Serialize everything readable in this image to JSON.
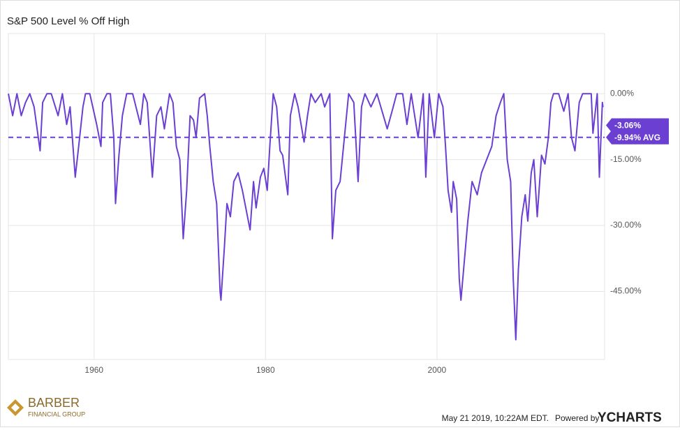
{
  "chart_data": {
    "type": "line",
    "title": "S&P 500 Level % Off High",
    "xlim": [
      1950,
      2019.56
    ],
    "ylim": [
      -60.5,
      13.7
    ],
    "xticks": [
      1960,
      1980,
      2000
    ],
    "yticks": [
      {
        "value": 0,
        "label": "0.00%"
      },
      {
        "value": -15,
        "label": "-15.00%"
      },
      {
        "value": -30,
        "label": "-30.00%"
      },
      {
        "value": -45,
        "label": "-45.00%"
      }
    ],
    "grid": true,
    "series": [
      {
        "color": "#6a3fd2",
        "end_label": "-3.06%",
        "x": [
          1950,
          1950.5,
          1951,
          1951.5,
          1952,
          1952.5,
          1953,
          1953.7,
          1954,
          1954.5,
          1955,
          1955.8,
          1956.3,
          1956.8,
          1957.2,
          1957.8,
          1958.2,
          1958.7,
          1959,
          1959.5,
          1960.3,
          1960.8,
          1961,
          1961.5,
          1961.9,
          1962.3,
          1962.5,
          1962.9,
          1963.3,
          1963.8,
          1964.5,
          1965.4,
          1965.8,
          1966.2,
          1966.8,
          1967.3,
          1967.8,
          1968.2,
          1968.8,
          1969.2,
          1969.6,
          1970,
          1970.4,
          1970.8,
          1971.2,
          1971.6,
          1971.9,
          1972.3,
          1972.9,
          1973.2,
          1973.5,
          1973.9,
          1974.3,
          1974.7,
          1974.8,
          1975.2,
          1975.5,
          1975.9,
          1976.3,
          1976.8,
          1977.3,
          1977.8,
          1978.2,
          1978.6,
          1978.9,
          1979.4,
          1979.8,
          1980.2,
          1980.5,
          1980.9,
          1981.3,
          1981.7,
          1982,
          1982.6,
          1982.9,
          1983.4,
          1983.8,
          1984.5,
          1984.9,
          1985.3,
          1985.8,
          1986.5,
          1986.9,
          1987.5,
          1987.8,
          1988.2,
          1988.7,
          1989.2,
          1989.7,
          1990.3,
          1990.8,
          1991.2,
          1991.6,
          1992.3,
          1993,
          1994.2,
          1994.9,
          1995.3,
          1996,
          1996.5,
          1997,
          1997.8,
          1998.4,
          1998.7,
          1999.1,
          1999.7,
          2000.2,
          2000.7,
          2001,
          2001.3,
          2001.7,
          2001.9,
          2002.3,
          2002.6,
          2002.8,
          2003.2,
          2003.6,
          2004.1,
          2004.7,
          2005.2,
          2005.8,
          2006.4,
          2006.9,
          2007.4,
          2007.8,
          2008.2,
          2008.6,
          2008.9,
          2009.2,
          2009.5,
          2009.9,
          2010.3,
          2010.6,
          2011,
          2011.3,
          2011.7,
          2012.2,
          2012.6,
          2013,
          2013.3,
          2013.6,
          2014.2,
          2014.8,
          2015.3,
          2015.7,
          2016.1,
          2016.6,
          2017,
          2018,
          2018.2,
          2018.7,
          2018.95,
          2019.3,
          2019.37
        ],
        "values": [
          0,
          -5,
          0,
          -5,
          -2,
          0,
          -3,
          -13,
          -2,
          0,
          0,
          -5,
          0,
          -7,
          -3,
          -19,
          -12,
          -3,
          0,
          0,
          -7,
          -12,
          -2,
          0,
          0,
          -10,
          -25,
          -14,
          -5,
          0,
          0,
          -7,
          0,
          -2,
          -19,
          -5,
          -3,
          -8,
          0,
          -2,
          -12,
          -15,
          -33,
          -22,
          -5,
          -6,
          -10,
          -1,
          0,
          -5,
          -12,
          -20,
          -25,
          -45,
          -47,
          -35,
          -25,
          -28,
          -20,
          -18,
          -22,
          -27,
          -31,
          -20,
          -26,
          -19,
          -17,
          -22,
          -12,
          0,
          -3,
          -13,
          -14,
          -23,
          -5,
          0,
          -3,
          -11,
          -5,
          0,
          -2,
          0,
          -3,
          0,
          -33,
          -22,
          -20,
          -10,
          0,
          -2,
          -20,
          -3,
          0,
          -3,
          0,
          -8,
          -3,
          0,
          0,
          -7,
          0,
          -10,
          0,
          -19,
          0,
          -10,
          0,
          -3,
          -12,
          -22,
          -27,
          -20,
          -24,
          -42,
          -47,
          -38,
          -29,
          -20,
          -23,
          -18,
          -15,
          -12,
          -5,
          -2,
          0,
          -15,
          -20,
          -42,
          -56,
          -40,
          -28,
          -23,
          -29,
          -18,
          -15,
          -28,
          -14,
          -16,
          -10,
          -2,
          0,
          0,
          -4,
          0,
          -10,
          -13,
          -2,
          0,
          0,
          -9,
          0,
          -19,
          -2,
          -3.06
        ]
      }
    ],
    "reference_lines": [
      {
        "value": -9.94,
        "label": "-9.94% AVG",
        "color": "#6a3fd2"
      }
    ]
  },
  "footer": {
    "logo_name": "BARBER",
    "logo_sub": "FINANCIAL GROUP",
    "timestamp": "May 21 2019, 10:22AM EDT.",
    "powered": "Powered by",
    "brand": "YCHARTS"
  }
}
